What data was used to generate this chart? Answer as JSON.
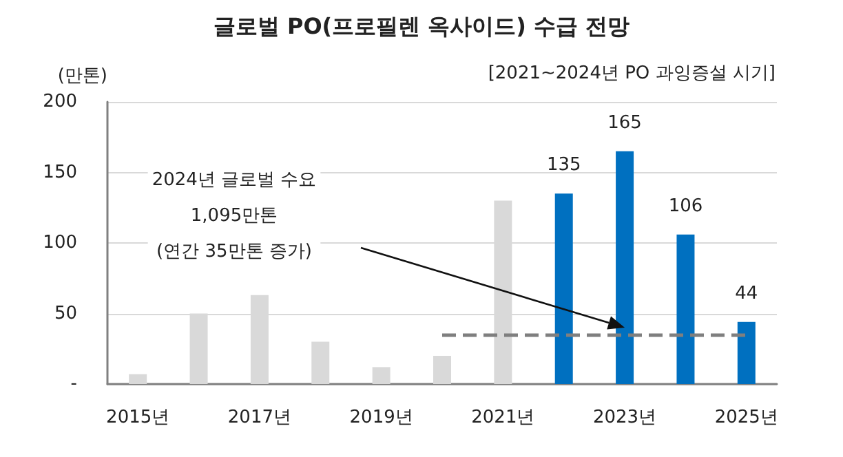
{
  "chart_data": {
    "type": "bar",
    "title": "글로벌 PO(프로필렌 옥사이드) 수급 전망",
    "subtitle": "[2021~2024년 PO 과잉증설 시기]",
    "ylabel": "(만톤)",
    "categories": [
      "2015년",
      null,
      "2017년",
      null,
      "2019년",
      null,
      "2021년",
      null,
      "2023년",
      null,
      "2025년"
    ],
    "values": [
      7,
      50,
      63,
      30,
      12,
      20,
      130,
      135,
      165,
      106,
      44
    ],
    "colors": [
      "#d9d9d9",
      "#d9d9d9",
      "#d9d9d9",
      "#d9d9d9",
      "#d9d9d9",
      "#d9d9d9",
      "#d9d9d9",
      "#0070c0",
      "#0070c0",
      "#0070c0",
      "#0070c0"
    ],
    "value_labels": [
      null,
      null,
      null,
      null,
      null,
      null,
      null,
      "135",
      "165",
      "106",
      "44"
    ],
    "ylim": [
      0,
      200
    ],
    "yticks": [
      {
        "value": 0,
        "label": "-"
      },
      50,
      100,
      150,
      200
    ],
    "grid": "y",
    "ref_lines": [
      {
        "axis": "y",
        "value": 35,
        "color": "#7f7f7f",
        "line_style": "dashed"
      }
    ],
    "annotations": [
      "2024년 글로벌 수요\n1,095만톤\n(연간 35만톤 증가)"
    ]
  }
}
